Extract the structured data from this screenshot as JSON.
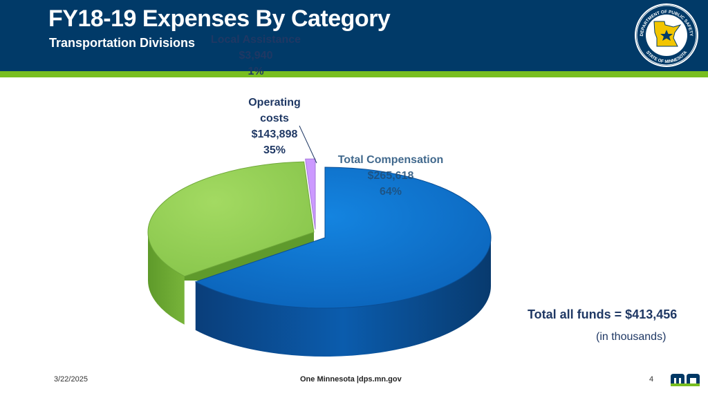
{
  "header": {
    "title": "FY18-19 Expenses By Category",
    "subtitle": "Transportation Divisions",
    "seal_text_top": "DEPARTMENT OF PUBLIC SAFETY",
    "seal_text_bottom": "STATE OF MINNESOTA"
  },
  "colors": {
    "header_bg": "#013A68",
    "accent_green": "#78BE20",
    "compensation": "#0070C0",
    "operating": "#92D050",
    "local": "#CC99FF"
  },
  "chart_data": {
    "type": "pie",
    "style": "3d-exploded",
    "slices": [
      {
        "name": "Total Compensation",
        "value_text": "$265,618",
        "percent_text": "64%",
        "value": 265618,
        "percent": 64
      },
      {
        "name": "Operating costs",
        "value_text": "$143,898",
        "percent_text": "35%",
        "value": 143898,
        "percent": 35
      },
      {
        "name": "Local Assistance",
        "value_text": "$3,940",
        "percent_text": "1%",
        "value": 3940,
        "percent": 1
      }
    ],
    "labels": {
      "local": [
        "Local Assistance",
        "$3,940",
        "1%"
      ],
      "operating": [
        "Operating",
        "costs",
        "$143,898",
        "35%"
      ],
      "compensation": [
        "Total Compensation",
        "$265,618",
        "64%"
      ]
    },
    "total_note": "Total all funds = $413,456",
    "units_note": "(in thousands)"
  },
  "footer": {
    "date": "3/22/2025",
    "center": "One Minnesota |dps.mn.gov",
    "page": "4",
    "logo_icon": "mn-logo-icon"
  }
}
